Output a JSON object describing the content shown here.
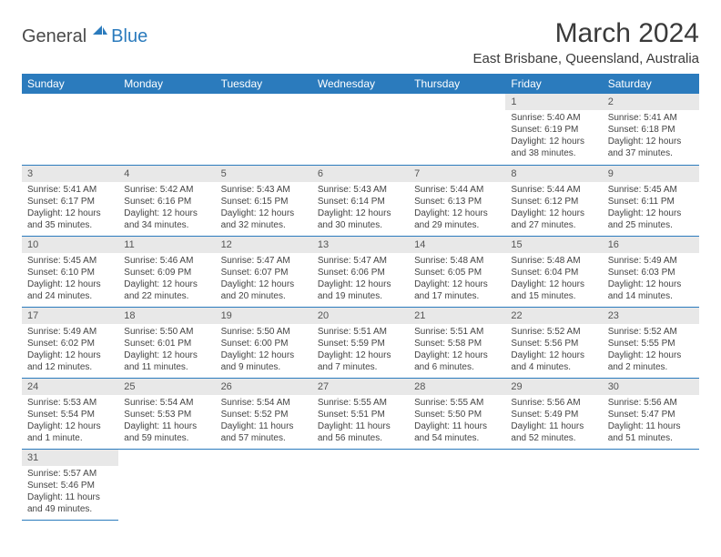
{
  "logo": {
    "text_dark": "General",
    "text_blue": "Blue"
  },
  "title": "March 2024",
  "location": "East Brisbane, Queensland, Australia",
  "colors": {
    "header_bg": "#2b7bbd",
    "header_text": "#ffffff",
    "daynum_bg": "#e8e8e8",
    "text": "#444444",
    "border": "#2b7bbd"
  },
  "weekdays": [
    "Sunday",
    "Monday",
    "Tuesday",
    "Wednesday",
    "Thursday",
    "Friday",
    "Saturday"
  ],
  "weeks": [
    [
      null,
      null,
      null,
      null,
      null,
      {
        "n": "1",
        "sr": "Sunrise: 5:40 AM",
        "ss": "Sunset: 6:19 PM",
        "dl": "Daylight: 12 hours and 38 minutes."
      },
      {
        "n": "2",
        "sr": "Sunrise: 5:41 AM",
        "ss": "Sunset: 6:18 PM",
        "dl": "Daylight: 12 hours and 37 minutes."
      }
    ],
    [
      {
        "n": "3",
        "sr": "Sunrise: 5:41 AM",
        "ss": "Sunset: 6:17 PM",
        "dl": "Daylight: 12 hours and 35 minutes."
      },
      {
        "n": "4",
        "sr": "Sunrise: 5:42 AM",
        "ss": "Sunset: 6:16 PM",
        "dl": "Daylight: 12 hours and 34 minutes."
      },
      {
        "n": "5",
        "sr": "Sunrise: 5:43 AM",
        "ss": "Sunset: 6:15 PM",
        "dl": "Daylight: 12 hours and 32 minutes."
      },
      {
        "n": "6",
        "sr": "Sunrise: 5:43 AM",
        "ss": "Sunset: 6:14 PM",
        "dl": "Daylight: 12 hours and 30 minutes."
      },
      {
        "n": "7",
        "sr": "Sunrise: 5:44 AM",
        "ss": "Sunset: 6:13 PM",
        "dl": "Daylight: 12 hours and 29 minutes."
      },
      {
        "n": "8",
        "sr": "Sunrise: 5:44 AM",
        "ss": "Sunset: 6:12 PM",
        "dl": "Daylight: 12 hours and 27 minutes."
      },
      {
        "n": "9",
        "sr": "Sunrise: 5:45 AM",
        "ss": "Sunset: 6:11 PM",
        "dl": "Daylight: 12 hours and 25 minutes."
      }
    ],
    [
      {
        "n": "10",
        "sr": "Sunrise: 5:45 AM",
        "ss": "Sunset: 6:10 PM",
        "dl": "Daylight: 12 hours and 24 minutes."
      },
      {
        "n": "11",
        "sr": "Sunrise: 5:46 AM",
        "ss": "Sunset: 6:09 PM",
        "dl": "Daylight: 12 hours and 22 minutes."
      },
      {
        "n": "12",
        "sr": "Sunrise: 5:47 AM",
        "ss": "Sunset: 6:07 PM",
        "dl": "Daylight: 12 hours and 20 minutes."
      },
      {
        "n": "13",
        "sr": "Sunrise: 5:47 AM",
        "ss": "Sunset: 6:06 PM",
        "dl": "Daylight: 12 hours and 19 minutes."
      },
      {
        "n": "14",
        "sr": "Sunrise: 5:48 AM",
        "ss": "Sunset: 6:05 PM",
        "dl": "Daylight: 12 hours and 17 minutes."
      },
      {
        "n": "15",
        "sr": "Sunrise: 5:48 AM",
        "ss": "Sunset: 6:04 PM",
        "dl": "Daylight: 12 hours and 15 minutes."
      },
      {
        "n": "16",
        "sr": "Sunrise: 5:49 AM",
        "ss": "Sunset: 6:03 PM",
        "dl": "Daylight: 12 hours and 14 minutes."
      }
    ],
    [
      {
        "n": "17",
        "sr": "Sunrise: 5:49 AM",
        "ss": "Sunset: 6:02 PM",
        "dl": "Daylight: 12 hours and 12 minutes."
      },
      {
        "n": "18",
        "sr": "Sunrise: 5:50 AM",
        "ss": "Sunset: 6:01 PM",
        "dl": "Daylight: 12 hours and 11 minutes."
      },
      {
        "n": "19",
        "sr": "Sunrise: 5:50 AM",
        "ss": "Sunset: 6:00 PM",
        "dl": "Daylight: 12 hours and 9 minutes."
      },
      {
        "n": "20",
        "sr": "Sunrise: 5:51 AM",
        "ss": "Sunset: 5:59 PM",
        "dl": "Daylight: 12 hours and 7 minutes."
      },
      {
        "n": "21",
        "sr": "Sunrise: 5:51 AM",
        "ss": "Sunset: 5:58 PM",
        "dl": "Daylight: 12 hours and 6 minutes."
      },
      {
        "n": "22",
        "sr": "Sunrise: 5:52 AM",
        "ss": "Sunset: 5:56 PM",
        "dl": "Daylight: 12 hours and 4 minutes."
      },
      {
        "n": "23",
        "sr": "Sunrise: 5:52 AM",
        "ss": "Sunset: 5:55 PM",
        "dl": "Daylight: 12 hours and 2 minutes."
      }
    ],
    [
      {
        "n": "24",
        "sr": "Sunrise: 5:53 AM",
        "ss": "Sunset: 5:54 PM",
        "dl": "Daylight: 12 hours and 1 minute."
      },
      {
        "n": "25",
        "sr": "Sunrise: 5:54 AM",
        "ss": "Sunset: 5:53 PM",
        "dl": "Daylight: 11 hours and 59 minutes."
      },
      {
        "n": "26",
        "sr": "Sunrise: 5:54 AM",
        "ss": "Sunset: 5:52 PM",
        "dl": "Daylight: 11 hours and 57 minutes."
      },
      {
        "n": "27",
        "sr": "Sunrise: 5:55 AM",
        "ss": "Sunset: 5:51 PM",
        "dl": "Daylight: 11 hours and 56 minutes."
      },
      {
        "n": "28",
        "sr": "Sunrise: 5:55 AM",
        "ss": "Sunset: 5:50 PM",
        "dl": "Daylight: 11 hours and 54 minutes."
      },
      {
        "n": "29",
        "sr": "Sunrise: 5:56 AM",
        "ss": "Sunset: 5:49 PM",
        "dl": "Daylight: 11 hours and 52 minutes."
      },
      {
        "n": "30",
        "sr": "Sunrise: 5:56 AM",
        "ss": "Sunset: 5:47 PM",
        "dl": "Daylight: 11 hours and 51 minutes."
      }
    ],
    [
      {
        "n": "31",
        "sr": "Sunrise: 5:57 AM",
        "ss": "Sunset: 5:46 PM",
        "dl": "Daylight: 11 hours and 49 minutes."
      },
      null,
      null,
      null,
      null,
      null,
      null
    ]
  ]
}
